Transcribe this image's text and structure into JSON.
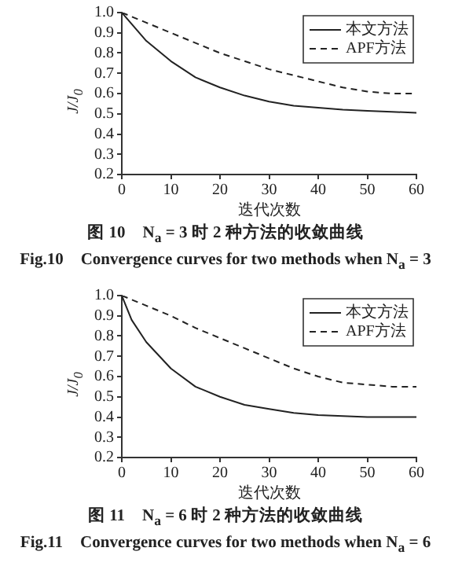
{
  "chart_data": [
    {
      "type": "line",
      "title": "图 10　N$_{a}$ = 3 时 2 种方法的收敛曲线",
      "subtitle": "Fig.10　Convergence curves for two methods when N$_{a}$ = 3",
      "xlabel": "迭代次数",
      "ylabel": "J/J$_{0}$",
      "xlim": [
        0,
        60
      ],
      "xticks": [
        0,
        10,
        20,
        30,
        40,
        50,
        60
      ],
      "ylim": [
        0.2,
        1.0
      ],
      "yticks": [
        0.2,
        0.3,
        0.4,
        0.5,
        0.6,
        0.7,
        0.8,
        0.9,
        {
          "value": 1,
          "label": "1.0"
        }
      ],
      "x": [
        0,
        5,
        10,
        15,
        20,
        25,
        30,
        35,
        40,
        45,
        50,
        55,
        60
      ],
      "legend": "top right",
      "grid": false,
      "marker": "none",
      "series": [
        {
          "name": "本文方法",
          "color": "#222222",
          "line_style": "solid",
          "values": [
            1.0,
            0.86,
            0.76,
            0.68,
            0.63,
            0.59,
            0.56,
            0.54,
            0.53,
            0.52,
            0.515,
            0.51,
            0.505
          ]
        },
        {
          "name": "APF方法",
          "color": "#222222",
          "line_style": "dashed",
          "values": [
            1.0,
            0.95,
            0.9,
            0.85,
            0.8,
            0.76,
            0.72,
            0.69,
            0.66,
            0.63,
            0.61,
            0.6,
            0.6
          ]
        }
      ]
    },
    {
      "type": "line",
      "title": "图 11　N$_{a}$ = 6 时 2 种方法的收敛曲线",
      "subtitle": "Fig.11　Convergence curves for two methods when N$_{a}$ = 6",
      "xlabel": "迭代次数",
      "ylabel": "J/J$_{0}$",
      "xlim": [
        0,
        60
      ],
      "xticks": [
        0,
        10,
        20,
        30,
        40,
        50,
        60
      ],
      "ylim": [
        0.2,
        1.0
      ],
      "yticks": [
        0.2,
        0.3,
        0.4,
        0.5,
        0.6,
        0.7,
        0.8,
        0.9,
        {
          "value": 1,
          "label": "1.0"
        }
      ],
      "x": [
        0,
        2,
        5,
        10,
        15,
        20,
        25,
        30,
        35,
        40,
        50,
        60
      ],
      "legend": "top right",
      "grid": false,
      "marker": "none",
      "series": [
        {
          "name": "本文方法",
          "color": "#222222",
          "line_style": "solid",
          "values": [
            1.0,
            0.88,
            0.77,
            0.64,
            0.55,
            0.5,
            0.46,
            0.44,
            0.42,
            0.41,
            0.4,
            0.4
          ]
        },
        {
          "name": "APF方法",
          "color": "#222222",
          "line_style": "dashed",
          "x": [
            0,
            5,
            10,
            15,
            20,
            25,
            30,
            35,
            40,
            45,
            50,
            55,
            60
          ],
          "values": [
            1.0,
            0.95,
            0.9,
            0.84,
            0.79,
            0.74,
            0.69,
            0.64,
            0.6,
            0.57,
            0.56,
            0.55,
            0.55
          ]
        }
      ]
    }
  ]
}
